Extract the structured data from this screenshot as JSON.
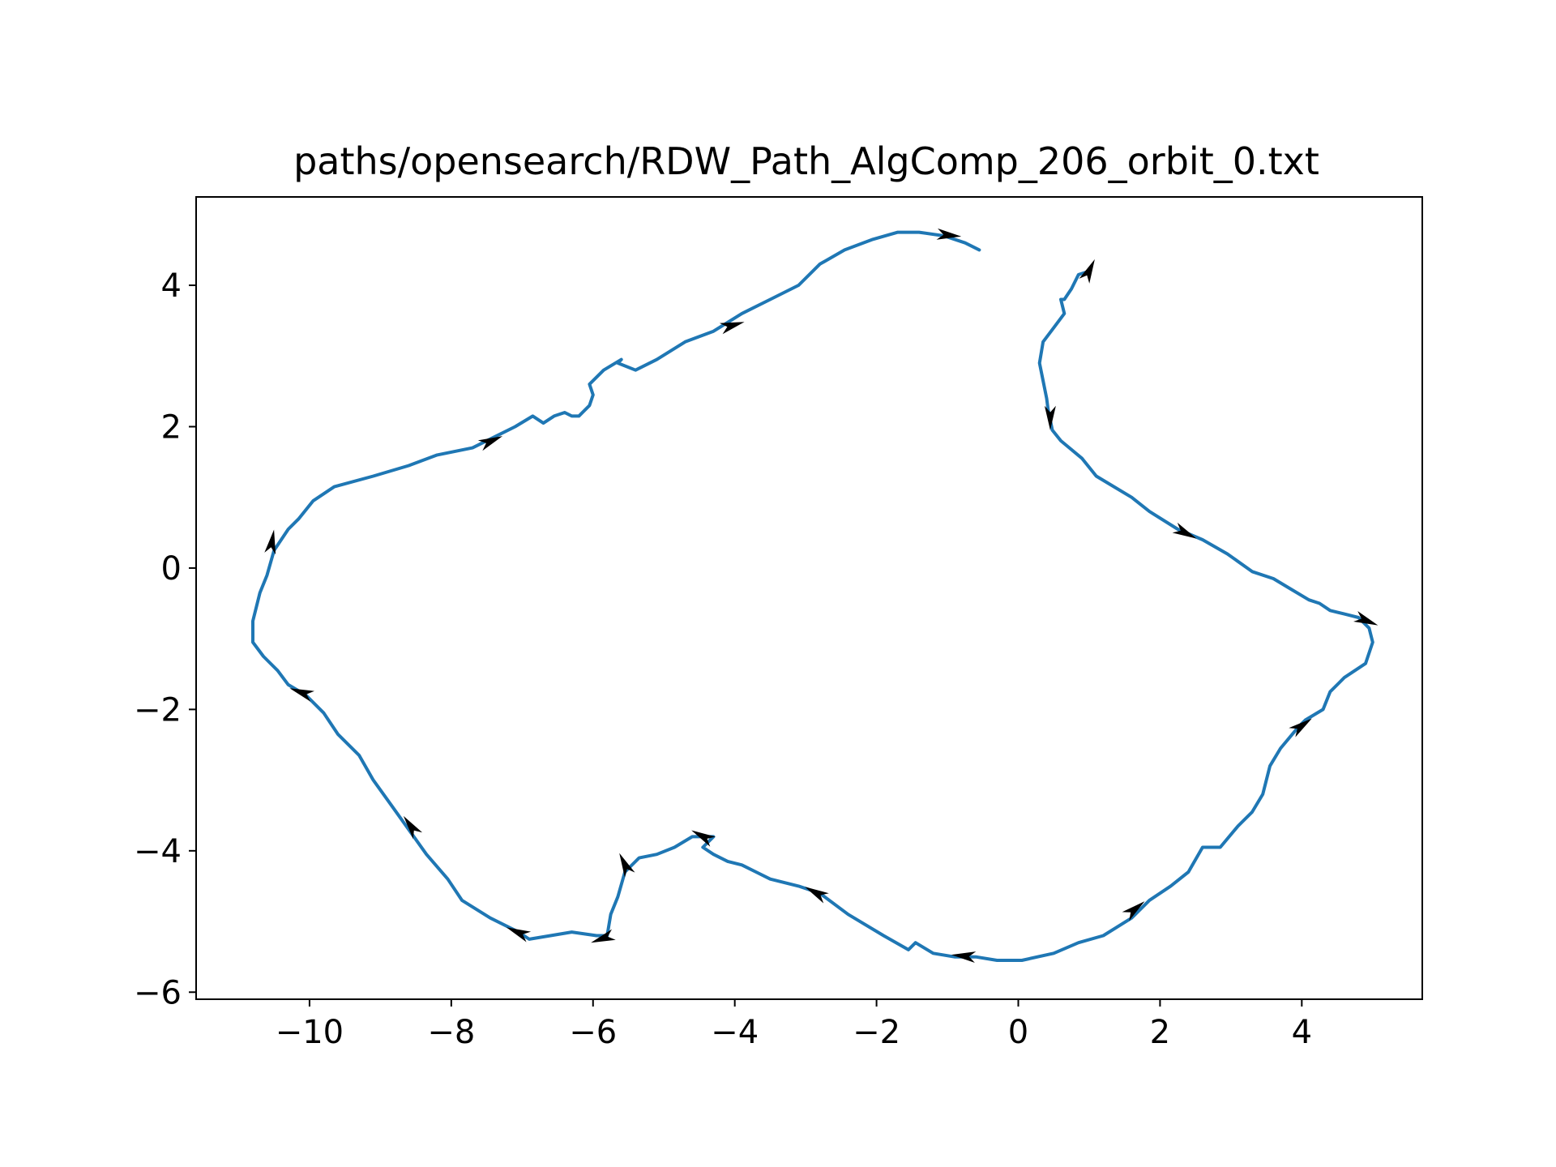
{
  "chart_data": {
    "type": "line",
    "title": "paths/opensearch/RDW_Path_AlgComp_206_orbit_0.txt",
    "xlabel": "",
    "ylabel": "",
    "xlim": [
      -11.6,
      5.7
    ],
    "ylim": [
      -6.1,
      5.25
    ],
    "xticks": [
      -10,
      -8,
      -6,
      -4,
      -2,
      0,
      2,
      4
    ],
    "yticks": [
      -6,
      -4,
      -2,
      0,
      2,
      4
    ],
    "xtick_labels": [
      "−10",
      "−8",
      "−6",
      "−4",
      "−2",
      "0",
      "2",
      "4"
    ],
    "ytick_labels": [
      "−6",
      "−4",
      "−2",
      "0",
      "2",
      "4"
    ],
    "grid": false,
    "series": [
      {
        "color": "#1f77b4",
        "points": [
          [
            1.0,
            4.2
          ],
          [
            0.85,
            4.15
          ],
          [
            0.75,
            3.95
          ],
          [
            0.65,
            3.8
          ],
          [
            0.6,
            3.8
          ],
          [
            0.65,
            3.6
          ],
          [
            0.5,
            3.4
          ],
          [
            0.35,
            3.2
          ],
          [
            0.3,
            2.9
          ],
          [
            0.35,
            2.65
          ],
          [
            0.4,
            2.4
          ],
          [
            0.42,
            2.25
          ],
          [
            0.48,
            1.95
          ],
          [
            0.6,
            1.8
          ],
          [
            0.9,
            1.55
          ],
          [
            1.1,
            1.3
          ],
          [
            1.3,
            1.18
          ],
          [
            1.6,
            1.0
          ],
          [
            1.85,
            0.8
          ],
          [
            2.25,
            0.55
          ],
          [
            2.6,
            0.4
          ],
          [
            2.95,
            0.2
          ],
          [
            3.3,
            -0.05
          ],
          [
            3.6,
            -0.15
          ],
          [
            3.85,
            -0.3
          ],
          [
            4.1,
            -0.45
          ],
          [
            4.25,
            -0.5
          ],
          [
            4.4,
            -0.6
          ],
          [
            4.6,
            -0.65
          ],
          [
            4.8,
            -0.7
          ],
          [
            4.95,
            -0.85
          ],
          [
            5.0,
            -1.05
          ],
          [
            4.9,
            -1.35
          ],
          [
            4.6,
            -1.55
          ],
          [
            4.4,
            -1.75
          ],
          [
            4.3,
            -2.0
          ],
          [
            4.05,
            -2.15
          ],
          [
            3.95,
            -2.25
          ],
          [
            3.7,
            -2.55
          ],
          [
            3.55,
            -2.8
          ],
          [
            3.45,
            -3.2
          ],
          [
            3.3,
            -3.45
          ],
          [
            3.1,
            -3.65
          ],
          [
            2.85,
            -3.95
          ],
          [
            2.6,
            -3.95
          ],
          [
            2.4,
            -4.3
          ],
          [
            2.15,
            -4.5
          ],
          [
            1.85,
            -4.7
          ],
          [
            1.6,
            -4.95
          ],
          [
            1.2,
            -5.2
          ],
          [
            0.85,
            -5.3
          ],
          [
            0.5,
            -5.45
          ],
          [
            0.05,
            -5.55
          ],
          [
            -0.3,
            -5.55
          ],
          [
            -0.6,
            -5.5
          ],
          [
            -0.9,
            -5.5
          ],
          [
            -1.2,
            -5.45
          ],
          [
            -1.45,
            -5.3
          ],
          [
            -1.55,
            -5.4
          ],
          [
            -1.9,
            -5.2
          ],
          [
            -2.4,
            -4.9
          ],
          [
            -2.8,
            -4.6
          ],
          [
            -3.1,
            -4.5
          ],
          [
            -3.3,
            -4.45
          ],
          [
            -3.5,
            -4.4
          ],
          [
            -3.7,
            -4.3
          ],
          [
            -3.9,
            -4.2
          ],
          [
            -4.1,
            -4.15
          ],
          [
            -4.3,
            -4.05
          ],
          [
            -4.45,
            -3.95
          ],
          [
            -4.3,
            -3.8
          ],
          [
            -4.6,
            -3.8
          ],
          [
            -4.85,
            -3.95
          ],
          [
            -5.1,
            -4.05
          ],
          [
            -5.35,
            -4.1
          ],
          [
            -5.55,
            -4.3
          ],
          [
            -5.65,
            -4.65
          ],
          [
            -5.75,
            -4.9
          ],
          [
            -5.8,
            -5.2
          ],
          [
            -5.95,
            -5.2
          ],
          [
            -6.3,
            -5.15
          ],
          [
            -6.6,
            -5.2
          ],
          [
            -6.9,
            -5.25
          ],
          [
            -7.05,
            -5.15
          ],
          [
            -7.45,
            -4.95
          ],
          [
            -7.85,
            -4.7
          ],
          [
            -8.05,
            -4.4
          ],
          [
            -8.35,
            -4.05
          ],
          [
            -8.6,
            -3.7
          ],
          [
            -8.85,
            -3.35
          ],
          [
            -9.1,
            -3.0
          ],
          [
            -9.3,
            -2.65
          ],
          [
            -9.6,
            -2.35
          ],
          [
            -9.8,
            -2.05
          ],
          [
            -10.05,
            -1.8
          ],
          [
            -10.3,
            -1.65
          ],
          [
            -10.45,
            -1.45
          ],
          [
            -10.65,
            -1.25
          ],
          [
            -10.8,
            -1.05
          ],
          [
            -10.8,
            -0.75
          ],
          [
            -10.7,
            -0.35
          ],
          [
            -10.6,
            -0.1
          ],
          [
            -10.5,
            0.25
          ],
          [
            -10.3,
            0.55
          ],
          [
            -10.15,
            0.7
          ],
          [
            -9.95,
            0.95
          ],
          [
            -9.65,
            1.15
          ],
          [
            -9.1,
            1.3
          ],
          [
            -8.6,
            1.45
          ],
          [
            -8.2,
            1.6
          ],
          [
            -7.7,
            1.7
          ],
          [
            -7.4,
            1.85
          ],
          [
            -7.1,
            2.0
          ],
          [
            -6.85,
            2.15
          ],
          [
            -6.7,
            2.05
          ],
          [
            -6.55,
            2.15
          ],
          [
            -6.4,
            2.2
          ],
          [
            -6.3,
            2.15
          ],
          [
            -6.2,
            2.15
          ],
          [
            -6.05,
            2.3
          ],
          [
            -6.0,
            2.45
          ],
          [
            -6.05,
            2.6
          ],
          [
            -5.85,
            2.8
          ],
          [
            -5.6,
            2.95
          ],
          [
            -5.65,
            2.9
          ],
          [
            -5.4,
            2.8
          ],
          [
            -5.1,
            2.95
          ],
          [
            -4.7,
            3.2
          ],
          [
            -4.3,
            3.35
          ],
          [
            -3.9,
            3.6
          ],
          [
            -3.5,
            3.8
          ],
          [
            -3.1,
            4.0
          ],
          [
            -2.8,
            4.3
          ],
          [
            -2.45,
            4.5
          ],
          [
            -2.05,
            4.65
          ],
          [
            -1.7,
            4.75
          ],
          [
            -1.4,
            4.75
          ],
          [
            -1.05,
            4.7
          ],
          [
            -0.75,
            4.6
          ],
          [
            -0.55,
            4.5
          ]
        ]
      }
    ],
    "arrows": [
      {
        "x": 0.95,
        "y": 4.1,
        "dx": 0.12,
        "dy": 0.25
      },
      {
        "x": 0.45,
        "y": 2.25,
        "dx": 0.0,
        "dy": -0.3
      },
      {
        "x": 2.25,
        "y": 0.55,
        "dx": 0.3,
        "dy": -0.15
      },
      {
        "x": 4.8,
        "y": -0.7,
        "dx": 0.3,
        "dy": -0.12
      },
      {
        "x": 3.9,
        "y": -2.3,
        "dx": 0.28,
        "dy": 0.2
      },
      {
        "x": 1.55,
        "y": -4.9,
        "dx": 0.25,
        "dy": 0.2
      },
      {
        "x": -0.65,
        "y": -5.5,
        "dx": -0.3,
        "dy": 0.03
      },
      {
        "x": -2.75,
        "y": -4.65,
        "dx": -0.28,
        "dy": 0.15
      },
      {
        "x": -4.35,
        "y": -3.85,
        "dx": -0.28,
        "dy": 0.15
      },
      {
        "x": -5.5,
        "y": -4.3,
        "dx": -0.12,
        "dy": 0.25
      },
      {
        "x": -5.75,
        "y": -5.2,
        "dx": -0.28,
        "dy": -0.1
      },
      {
        "x": -6.95,
        "y": -5.2,
        "dx": -0.28,
        "dy": 0.12
      },
      {
        "x": -8.5,
        "y": -3.75,
        "dx": -0.18,
        "dy": 0.25
      },
      {
        "x": -10.0,
        "y": -1.8,
        "dx": -0.28,
        "dy": 0.1
      },
      {
        "x": -10.55,
        "y": 0.25,
        "dx": 0.05,
        "dy": 0.3
      },
      {
        "x": -7.55,
        "y": 1.75,
        "dx": 0.28,
        "dy": 0.12
      },
      {
        "x": -4.15,
        "y": 3.4,
        "dx": 0.28,
        "dy": 0.08
      },
      {
        "x": -1.1,
        "y": 4.72,
        "dx": 0.3,
        "dy": -0.03
      }
    ]
  }
}
